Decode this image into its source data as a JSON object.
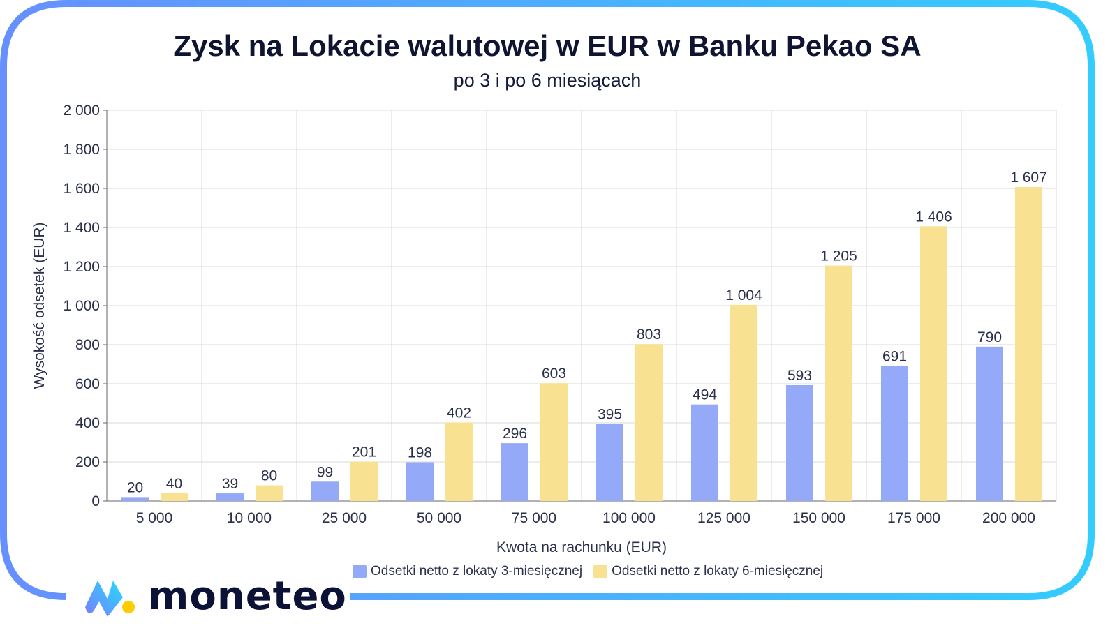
{
  "brand": {
    "name": "moneteo",
    "gradient_start": "#6f8cff",
    "gradient_end": "#22d8ff",
    "dot_color": "#ffcc00"
  },
  "chart_data": {
    "type": "bar",
    "title": "Zysk na Lokacie walutowej w EUR w Banku Pekao SA",
    "subtitle": "po 3 i po 6 miesiącach",
    "xlabel": "Kwota na rachunku (EUR)",
    "ylabel": "Wysokość odsetek (EUR)",
    "ylim": [
      0,
      2000
    ],
    "yticks": [
      0,
      200,
      400,
      600,
      800,
      1000,
      1200,
      1400,
      1600,
      1800,
      2000
    ],
    "ytick_labels": [
      "0",
      "200",
      "400",
      "600",
      "800",
      "1 000",
      "1 200",
      "1 400",
      "1 600",
      "1 800",
      "2 000"
    ],
    "grid": true,
    "legend_placement": "bottom",
    "categories": [
      "5 000",
      "10 000",
      "25 000",
      "50 000",
      "75 000",
      "100 000",
      "125 000",
      "150 000",
      "175 000",
      "200 000"
    ],
    "series": [
      {
        "name": "Odsetki netto z lokaty 3-miesięcznej",
        "color": "#94a9f7",
        "values": [
          20,
          39,
          99,
          198,
          296,
          395,
          494,
          593,
          691,
          790
        ],
        "labels": [
          "20",
          "39",
          "99",
          "198",
          "296",
          "395",
          "494",
          "593",
          "691",
          "790"
        ]
      },
      {
        "name": "Odsetki netto z lokaty 6-miesięcznej",
        "color": "#f8e190",
        "values": [
          40,
          80,
          201,
          402,
          603,
          803,
          1004,
          1205,
          1406,
          1607
        ],
        "labels": [
          "40",
          "80",
          "201",
          "402",
          "603",
          "803",
          "1 004",
          "1 205",
          "1 406",
          "1 607"
        ]
      }
    ]
  }
}
